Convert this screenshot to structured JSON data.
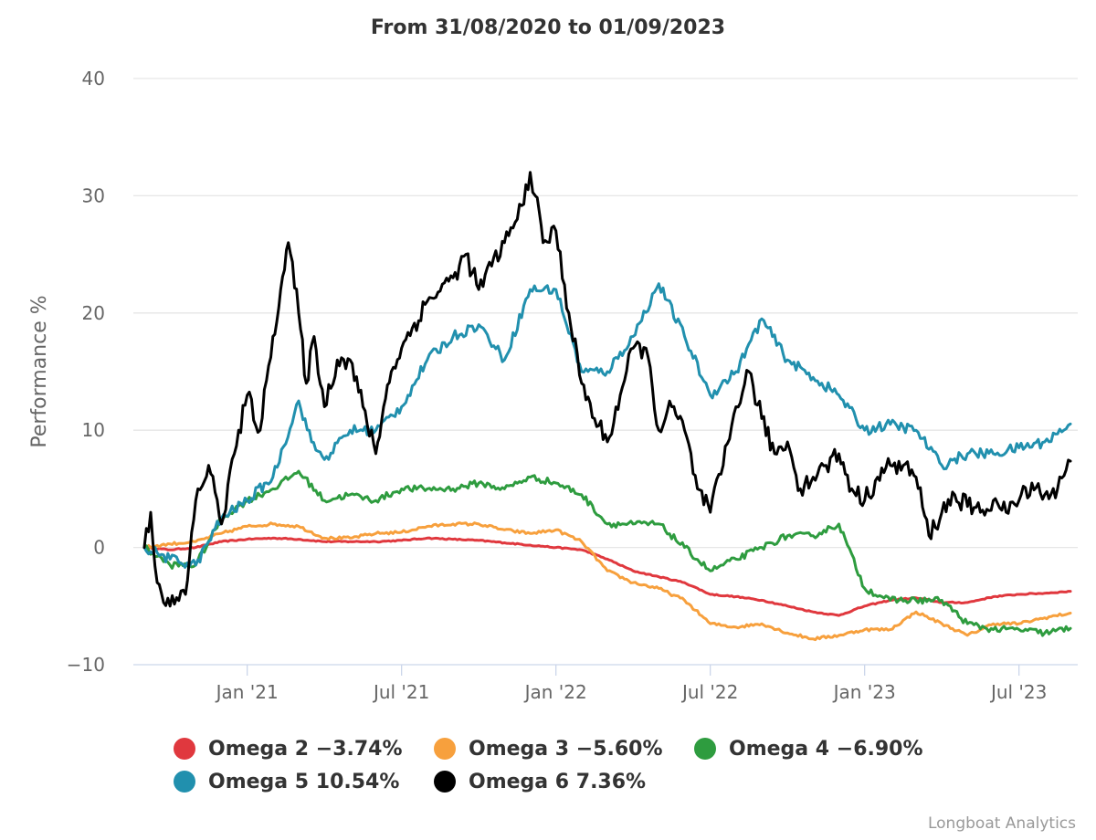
{
  "chart_data": {
    "type": "line",
    "title": "From 31/08/2020 to 01/09/2023",
    "ylabel": "Performance %",
    "xlabel": "",
    "ylim": [
      -10,
      40
    ],
    "yticks": [
      -10,
      0,
      10,
      20,
      30,
      40
    ],
    "xlim": [
      0,
      36
    ],
    "x_unit": "months since 31/08/2020",
    "xticks": [
      {
        "label": "Jan '21",
        "pos": 4
      },
      {
        "label": "Jul '21",
        "pos": 10
      },
      {
        "label": "Jan '22",
        "pos": 16
      },
      {
        "label": "Jul '22",
        "pos": 22
      },
      {
        "label": "Jan '23",
        "pos": 28
      },
      {
        "label": "Jul '23",
        "pos": 34
      }
    ],
    "grid": true,
    "legend_position": "bottom",
    "series": [
      {
        "name": "Omega 2",
        "final": "-3.74%",
        "color": "#e0383e",
        "x": [
          0,
          1,
          2,
          3,
          4,
          5,
          6,
          7,
          8,
          9,
          10,
          11,
          12,
          13,
          14,
          15,
          16,
          17,
          18,
          19,
          20,
          21,
          22,
          23,
          24,
          25,
          26,
          27,
          28,
          29,
          30,
          31,
          32,
          33,
          34,
          35,
          36
        ],
        "values": [
          0,
          -0.2,
          0,
          0.5,
          0.7,
          0.8,
          0.7,
          0.5,
          0.5,
          0.5,
          0.6,
          0.8,
          0.7,
          0.6,
          0.4,
          0.2,
          0,
          -0.2,
          -1.0,
          -2.0,
          -2.5,
          -3.0,
          -4.0,
          -4.2,
          -4.5,
          -5.0,
          -5.5,
          -5.8,
          -5.0,
          -4.5,
          -4.3,
          -4.7,
          -4.7,
          -4.2,
          -4.0,
          -3.9,
          -3.74
        ]
      },
      {
        "name": "Omega 3",
        "final": "-5.60%",
        "color": "#f7a03d",
        "x": [
          0,
          1,
          2,
          3,
          4,
          5,
          6,
          7,
          8,
          9,
          10,
          11,
          12,
          13,
          14,
          15,
          16,
          17,
          18,
          19,
          20,
          21,
          22,
          23,
          24,
          25,
          26,
          27,
          28,
          29,
          30,
          31,
          32,
          33,
          34,
          35,
          36
        ],
        "values": [
          0,
          0.3,
          0.5,
          1.2,
          1.8,
          2.0,
          1.8,
          0.8,
          0.8,
          1.2,
          1.3,
          1.8,
          2.0,
          2.0,
          1.5,
          1.2,
          1.5,
          0.5,
          -2.0,
          -3.0,
          -3.5,
          -4.5,
          -6.5,
          -6.8,
          -6.5,
          -7.3,
          -7.8,
          -7.5,
          -7.0,
          -7.0,
          -5.5,
          -6.5,
          -7.5,
          -6.5,
          -6.5,
          -6.0,
          -5.6
        ]
      },
      {
        "name": "Omega 4",
        "final": "-6.90%",
        "color": "#2e9c3f",
        "x": [
          0,
          1,
          2,
          3,
          4,
          5,
          6,
          7,
          8,
          9,
          10,
          11,
          12,
          13,
          14,
          15,
          16,
          17,
          18,
          19,
          20,
          21,
          22,
          23,
          24,
          25,
          26,
          27,
          28,
          29,
          30,
          31,
          32,
          33,
          34,
          35,
          36
        ],
        "values": [
          0,
          -1.5,
          -1.5,
          2.5,
          4.0,
          5.0,
          6.5,
          4.0,
          4.5,
          4.0,
          5.0,
          5.0,
          5.0,
          5.5,
          5.0,
          6.0,
          5.5,
          4.5,
          2.0,
          2.0,
          2.0,
          0,
          -2.0,
          -1.0,
          0,
          1.0,
          1.0,
          2.0,
          -3.5,
          -4.5,
          -4.5,
          -4.5,
          -6.5,
          -7.0,
          -7.0,
          -7.3,
          -6.9
        ]
      },
      {
        "name": "Omega 5",
        "final": "10.54%",
        "color": "#2190ae",
        "x": [
          0,
          1,
          2,
          3,
          4,
          5,
          6,
          6.5,
          7,
          8,
          9,
          10,
          11,
          12,
          13,
          14,
          15,
          16,
          17,
          18,
          19,
          20,
          21,
          22,
          23,
          24,
          25,
          26,
          27,
          28,
          29,
          30,
          31,
          32,
          33,
          34,
          35,
          36
        ],
        "values": [
          0,
          -1.0,
          -1.5,
          2.5,
          4.0,
          6.0,
          12.5,
          9.0,
          7.5,
          10.0,
          10.0,
          12.0,
          16.0,
          18.0,
          19.0,
          16.0,
          22.0,
          22.0,
          15.0,
          15.0,
          18.0,
          22.5,
          18.0,
          13.0,
          15.0,
          19.5,
          16.0,
          14.5,
          13.0,
          10.0,
          10.5,
          10.0,
          7.0,
          8.0,
          8.0,
          8.5,
          9.0,
          10.54
        ]
      },
      {
        "name": "Omega 6",
        "final": "7.36%",
        "color": "#000000",
        "x": [
          0,
          0.25,
          0.5,
          1.0,
          1.6,
          2.0,
          2.5,
          3.0,
          3.5,
          4.0,
          4.5,
          5.0,
          5.3,
          5.6,
          6.0,
          6.3,
          6.6,
          7.0,
          7.5,
          8.0,
          8.5,
          9.0,
          9.3,
          9.6,
          10.0,
          11.0,
          12.0,
          12.5,
          13.0,
          13.5,
          14.0,
          14.5,
          15.0,
          15.2,
          15.5,
          16.0,
          16.5,
          17.0,
          17.5,
          18.0,
          18.5,
          19.0,
          19.5,
          20.0,
          20.5,
          21.0,
          21.5,
          22.0,
          22.5,
          23.0,
          23.5,
          24.0,
          24.5,
          25.0,
          25.5,
          26.0,
          26.5,
          27.0,
          27.5,
          28.0,
          28.5,
          29.0,
          29.5,
          30.0,
          30.5,
          31.0,
          31.5,
          32.0,
          32.5,
          33.0,
          33.5,
          34.0,
          34.5,
          35.0,
          35.5,
          36.0
        ],
        "values": [
          0,
          3.0,
          -3.0,
          -5.0,
          -4.0,
          4.0,
          7.0,
          2.0,
          8.0,
          13.0,
          10.0,
          18.0,
          22.0,
          26.0,
          20.0,
          14.0,
          18.0,
          12.0,
          16.0,
          16.0,
          12.0,
          8.0,
          12.0,
          15.0,
          17.0,
          21.0,
          23.0,
          25.0,
          22.0,
          24.0,
          26.0,
          28.0,
          32.0,
          30.0,
          26.0,
          27.0,
          20.0,
          14.0,
          11.0,
          9.0,
          13.0,
          17.0,
          17.0,
          10.0,
          12.0,
          10.0,
          5.0,
          3.0,
          7.0,
          12.0,
          15.0,
          11.0,
          8.0,
          9.0,
          5.0,
          6.0,
          7.0,
          8.0,
          5.0,
          4.0,
          6.0,
          7.0,
          7.0,
          6.0,
          1.0,
          3.0,
          4.5,
          3.5,
          3.0,
          4.0,
          3.0,
          4.0,
          5.5,
          4.5,
          5.0,
          7.36
        ]
      }
    ]
  },
  "credit": "Longboat Analytics"
}
